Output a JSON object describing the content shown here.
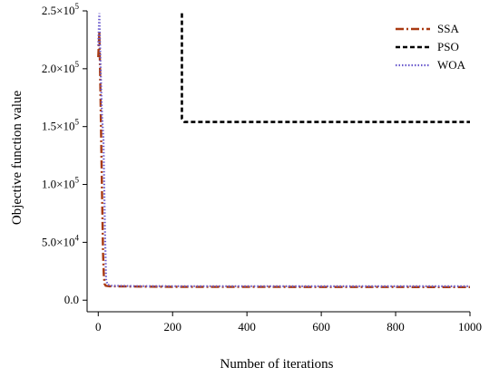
{
  "chart_data": {
    "type": "line",
    "title": "",
    "xlabel": "Number of iterations",
    "ylabel": "Objective function value",
    "xlim": [
      -30,
      1000
    ],
    "ylim": [
      -10000,
      250000
    ],
    "xticks": [
      0,
      200,
      400,
      600,
      800,
      1000
    ],
    "xtick_labels": [
      "0",
      "200",
      "400",
      "600",
      "800",
      "1000"
    ],
    "yticks": [
      0,
      50000,
      100000,
      150000,
      200000,
      250000
    ],
    "ytick_labels": [
      {
        "mantissa": "0.0",
        "exp": ""
      },
      {
        "mantissa": "5.0×10",
        "exp": "4"
      },
      {
        "mantissa": "1.0×10",
        "exp": "5"
      },
      {
        "mantissa": "1.5×10",
        "exp": "5"
      },
      {
        "mantissa": "2.0×10",
        "exp": "5"
      },
      {
        "mantissa": "2.5×10",
        "exp": "5"
      }
    ],
    "grid": false,
    "legend_position": "top-right",
    "series": [
      {
        "name": "SSA",
        "color": "#a93a12",
        "dash": "dashdot",
        "x": [
          0,
          3,
          6,
          10,
          13,
          15,
          17,
          20,
          30,
          100,
          200,
          1000
        ],
        "y": [
          210000,
          232000,
          180000,
          95000,
          40000,
          22000,
          14000,
          12500,
          12000,
          11800,
          11500,
          11300
        ]
      },
      {
        "name": "PSO",
        "color": "#000000",
        "dash": "dash",
        "x": [
          225,
          225,
          232,
          1000
        ],
        "y": [
          248000,
          157000,
          154000,
          154000
        ]
      },
      {
        "name": "WOA",
        "color": "#6a5acd",
        "dash": "dot",
        "x": [
          0,
          3,
          6,
          10,
          14,
          18,
          21,
          25,
          35,
          100,
          200,
          1000
        ],
        "y": [
          220000,
          248000,
          205000,
          160000,
          140000,
          60000,
          18000,
          13500,
          12500,
          12200,
          12100,
          12000
        ]
      }
    ]
  }
}
